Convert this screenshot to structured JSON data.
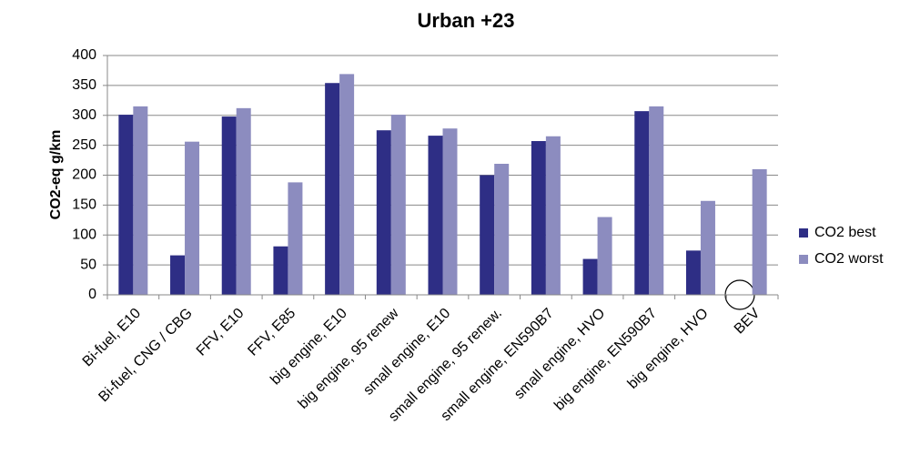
{
  "chart_data": {
    "type": "bar",
    "title": "Urban +23",
    "y_label": "CO2-eq g/km",
    "categories": [
      "Bi-fuel, E10",
      "Bi-fuel, CNG / CBG",
      "FFV, E10",
      "FFV, E85",
      "big engine, E10",
      "big engine, 95 renew",
      "small engine, E10",
      "small engine, 95 renew.",
      "small engine, EN590B7",
      "small engine, HVO",
      "big engine, EN590B7",
      "big engine, HVO",
      "BEV"
    ],
    "series": [
      {
        "name": "CO2 best",
        "color": "#2e2e85",
        "values": [
          301,
          66,
          298,
          81,
          354,
          275,
          266,
          200,
          257,
          60,
          307,
          74,
          0
        ]
      },
      {
        "name": "CO2 worst",
        "color": "#8c8cbf",
        "values": [
          315,
          256,
          312,
          188,
          369,
          301,
          278,
          219,
          265,
          130,
          315,
          157,
          210
        ]
      }
    ],
    "ylim": [
      0,
      400
    ],
    "yticks": [
      0,
      50,
      100,
      150,
      200,
      250,
      300,
      350,
      400
    ],
    "grid": true,
    "legend": "right"
  }
}
